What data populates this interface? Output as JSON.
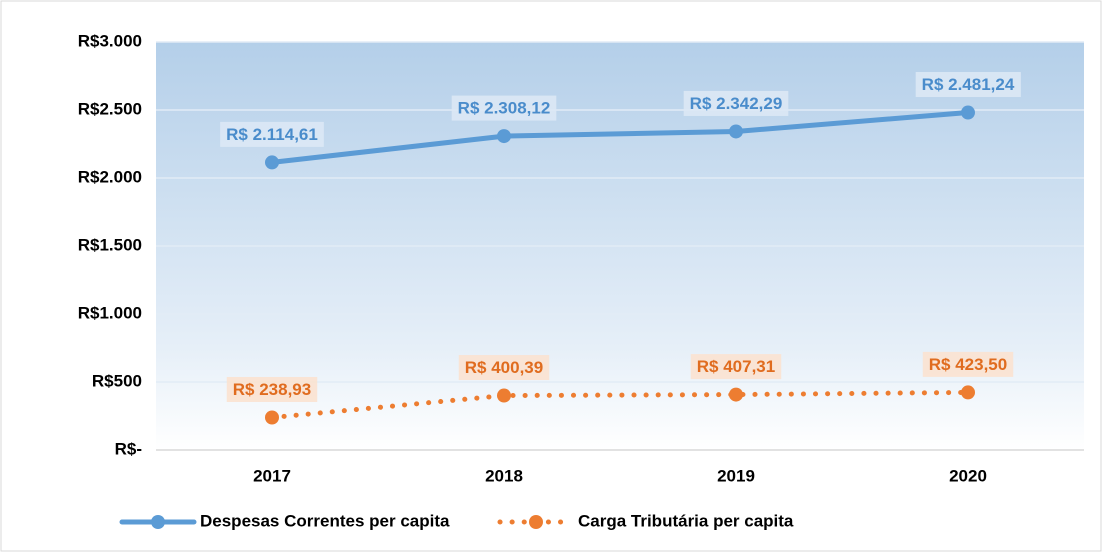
{
  "chart_data": {
    "type": "line",
    "categories": [
      "2017",
      "2018",
      "2019",
      "2020"
    ],
    "series": [
      {
        "name": "Despesas Correntes per capita",
        "color": "#5b9bd5",
        "dash": false,
        "values": [
          2114.61,
          2308.12,
          2342.29,
          2481.24
        ],
        "value_labels": [
          "R$ 2.114,61",
          "R$ 2.308,12",
          "R$ 2.342,29",
          "R$ 2.481,24"
        ]
      },
      {
        "name": "Carga Tributária per capita",
        "color": "#ed7d31",
        "dash": true,
        "values": [
          238.93,
          400.39,
          407.31,
          423.5
        ],
        "value_labels": [
          "R$ 238,93",
          "R$ 400,39",
          "R$ 407,31",
          "R$ 423,50"
        ]
      }
    ],
    "ylim": [
      0,
      3000
    ],
    "yticks": [
      {
        "value": 0,
        "label": "R$-"
      },
      {
        "value": 500,
        "label": "R$500"
      },
      {
        "value": 1000,
        "label": "R$1.000"
      },
      {
        "value": 1500,
        "label": "R$1.500"
      },
      {
        "value": 2000,
        "label": "R$2.000"
      },
      {
        "value": 2500,
        "label": "R$2.500"
      },
      {
        "value": 3000,
        "label": "R$3.000"
      }
    ],
    "grid": true,
    "legend": "bottom"
  }
}
